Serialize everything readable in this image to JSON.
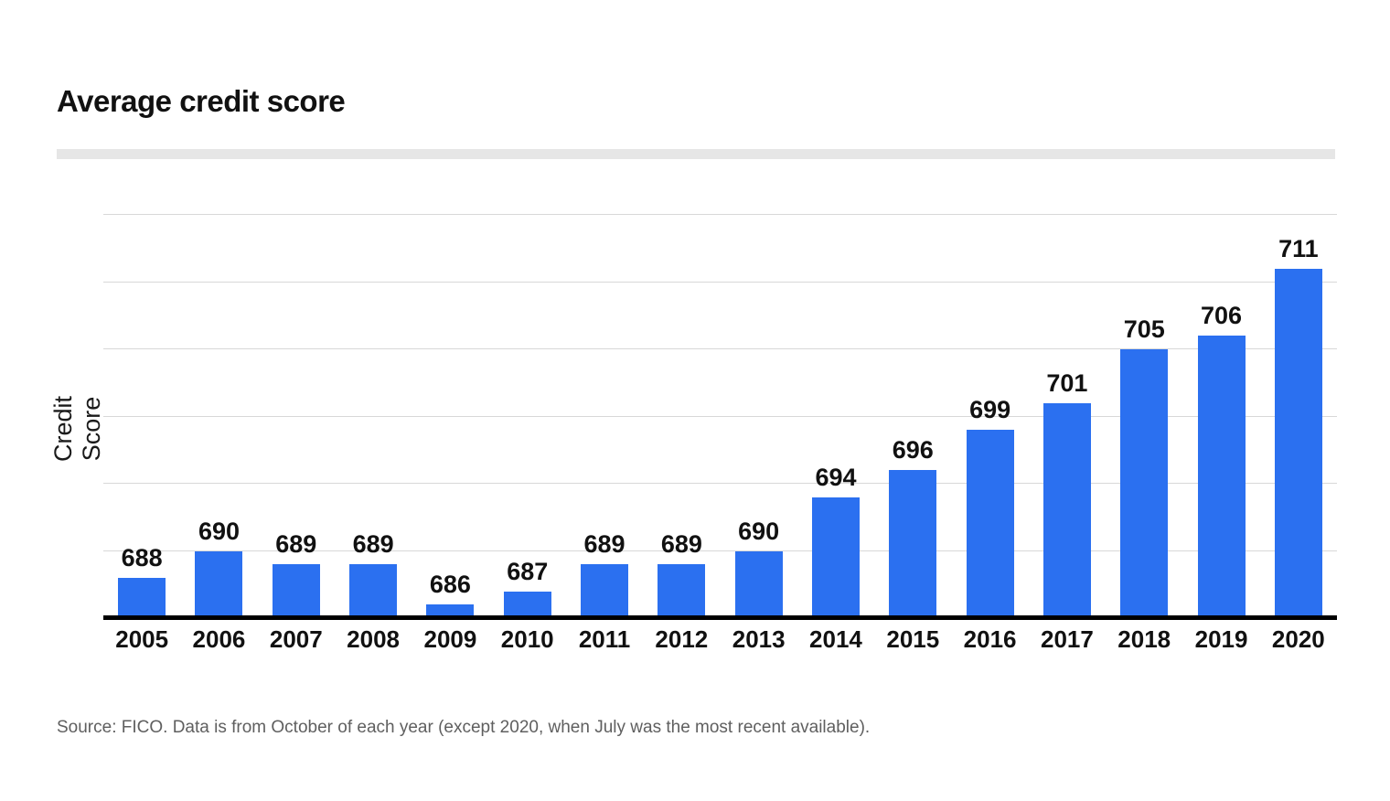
{
  "header": {
    "title": "Average credit score"
  },
  "chart_data": {
    "type": "bar",
    "title": "Average credit score",
    "categories": [
      "2005",
      "2006",
      "2007",
      "2008",
      "2009",
      "2010",
      "2011",
      "2012",
      "2013",
      "2014",
      "2015",
      "2016",
      "2017",
      "2018",
      "2019",
      "2020"
    ],
    "values": [
      688,
      690,
      689,
      689,
      686,
      687,
      689,
      689,
      690,
      694,
      696,
      699,
      701,
      705,
      706,
      711
    ],
    "xlabel": "",
    "ylabel": "Credit Score",
    "ylim": [
      685,
      717.4
    ],
    "gridline_values": [
      690,
      695,
      700,
      705,
      710,
      715
    ],
    "grid": true,
    "legend_position": "none",
    "data_labels": true,
    "bar_color": "#2b70f0",
    "gridline_color": "#d8d8d8",
    "axis_color": "#000000"
  },
  "footer": {
    "source": "Source: FICO. Data is from October of each year (except 2020, when July was the most recent available)."
  }
}
